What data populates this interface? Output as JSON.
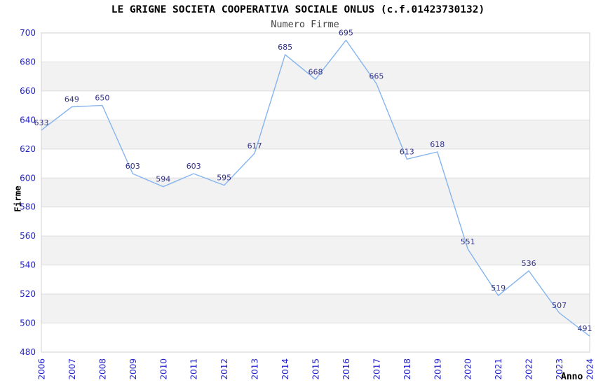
{
  "header": {
    "title": "LE GRIGNE SOCIETA COOPERATIVA SOCIALE ONLUS (c.f.01423730132)",
    "subtitle": "Numero Firme"
  },
  "chart_data": {
    "type": "line",
    "title": "LE GRIGNE SOCIETA COOPERATIVA SOCIALE ONLUS (c.f.01423730132)",
    "subtitle": "Numero Firme",
    "xlabel": "Anno",
    "ylabel": "Firme",
    "x": [
      2006,
      2007,
      2008,
      2009,
      2010,
      2011,
      2012,
      2013,
      2014,
      2015,
      2016,
      2017,
      2018,
      2019,
      2020,
      2021,
      2022,
      2023,
      2024
    ],
    "values": [
      633,
      649,
      650,
      603,
      594,
      603,
      595,
      617,
      685,
      668,
      695,
      665,
      613,
      618,
      551,
      519,
      536,
      507,
      491
    ],
    "ylim": [
      480,
      700
    ],
    "ytick_step": 20,
    "yticks": [
      480,
      500,
      520,
      540,
      560,
      580,
      600,
      620,
      640,
      660,
      680,
      700
    ],
    "grid": "horizontal gridlines with alternating shaded bands",
    "legend": "none",
    "point_labels_visible": true,
    "colors": {
      "line": "#85b4ee",
      "value_label": "#333388",
      "tick_label": "#2222cc",
      "band": "#f2f2f2",
      "grid": "#dddddd",
      "border": "#d0d0d0",
      "title": "#000000",
      "subtitle": "#444444",
      "background": "#ffffff"
    }
  }
}
